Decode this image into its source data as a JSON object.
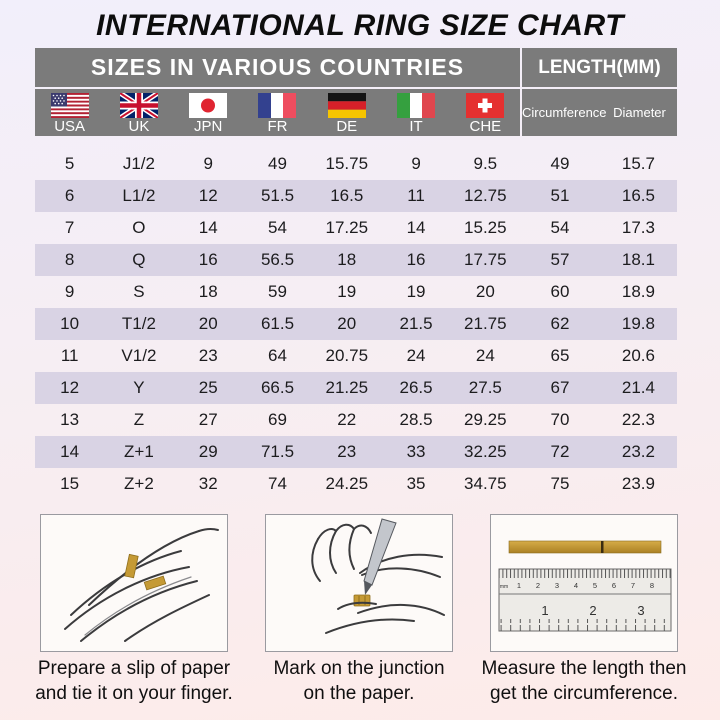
{
  "chart_data": {
    "type": "table",
    "title": "INTERNATIONAL RING SIZE CHART",
    "group_headers": [
      "SIZES IN VARIOUS COUNTRIES",
      "LENGTH(MM)"
    ],
    "columns": [
      "USA",
      "UK",
      "JPN",
      "FR",
      "DE",
      "IT",
      "CHE",
      "Circumference",
      "Diameter"
    ],
    "rows": [
      [
        "5",
        "J1/2",
        "9",
        "49",
        "15.75",
        "9",
        "9.5",
        "49",
        "15.7"
      ],
      [
        "6",
        "L1/2",
        "12",
        "51.5",
        "16.5",
        "11",
        "12.75",
        "51",
        "16.5"
      ],
      [
        "7",
        "O",
        "14",
        "54",
        "17.25",
        "14",
        "15.25",
        "54",
        "17.3"
      ],
      [
        "8",
        "Q",
        "16",
        "56.5",
        "18",
        "16",
        "17.75",
        "57",
        "18.1"
      ],
      [
        "9",
        "S",
        "18",
        "59",
        "19",
        "19",
        "20",
        "60",
        "18.9"
      ],
      [
        "10",
        "T1/2",
        "20",
        "61.5",
        "20",
        "21.5",
        "21.75",
        "62",
        "19.8"
      ],
      [
        "11",
        "V1/2",
        "23",
        "64",
        "20.75",
        "24",
        "24",
        "65",
        "20.6"
      ],
      [
        "12",
        "Y",
        "25",
        "66.5",
        "21.25",
        "26.5",
        "27.5",
        "67",
        "21.4"
      ],
      [
        "13",
        "Z",
        "27",
        "69",
        "22",
        "28.5",
        "29.25",
        "70",
        "22.3"
      ],
      [
        "14",
        "Z+1",
        "29",
        "71.5",
        "23",
        "33",
        "32.25",
        "72",
        "23.2"
      ],
      [
        "15",
        "Z+2",
        "32",
        "74",
        "24.25",
        "35",
        "34.75",
        "75",
        "23.9"
      ]
    ]
  },
  "instructions": {
    "steps": [
      {
        "lines": [
          "Prepare a slip of paper",
          "and tie it on your finger."
        ]
      },
      {
        "lines": [
          "Mark on the junction",
          "on the paper."
        ]
      },
      {
        "lines": [
          "Measure the length then",
          "get the circumference."
        ]
      }
    ]
  },
  "ruler": {
    "unit_label": "mm",
    "cm_numbers": [
      "1",
      "2",
      "3",
      "4",
      "5",
      "6",
      "7",
      "8"
    ],
    "inch_numbers": [
      "1",
      "2",
      "3"
    ]
  },
  "colors": {
    "header_gray": "#7b7b7b",
    "row_shade": "#d9d3e4",
    "strip_gold": "#c59a35",
    "bg_top": "#f2effb",
    "bg_bottom": "#fdebe9"
  }
}
